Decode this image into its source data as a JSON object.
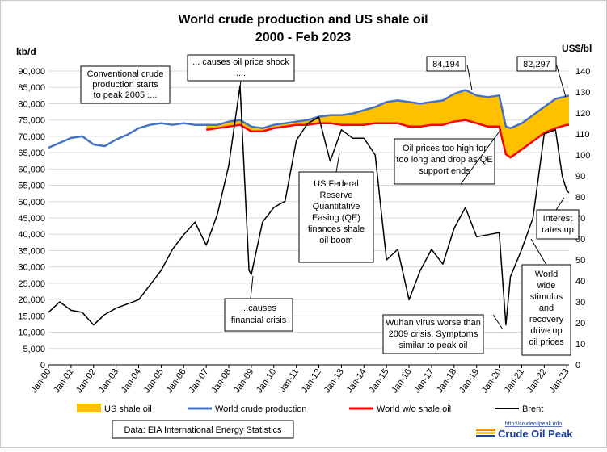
{
  "chart_data": {
    "type": "area",
    "title_line1": "World crude production and US shale oil",
    "title_line2": "2000 - Feb 2023",
    "y_left_unit": "kb/d",
    "y_right_unit": "US$/bl",
    "ylim_left": [
      0,
      90000
    ],
    "ylim_right": [
      0,
      140
    ],
    "y_left_ticks": [
      "0",
      "5,000",
      "10,000",
      "15,000",
      "20,000",
      "25,000",
      "30,000",
      "35,000",
      "40,000",
      "45,000",
      "50,000",
      "55,000",
      "60,000",
      "65,000",
      "70,000",
      "75,000",
      "80,000",
      "85,000",
      "90,000"
    ],
    "y_right_ticks": [
      "0",
      "10",
      "20",
      "30",
      "40",
      "50",
      "60",
      "70",
      "80",
      "90",
      "100",
      "110",
      "120",
      "130",
      "140"
    ],
    "x_ticks": [
      "Jan-00",
      "Jan-01",
      "Jan-02",
      "Jan-03",
      "Jan-04",
      "Jan-05",
      "Jan-06",
      "Jan-07",
      "Jan-08",
      "Jan-09",
      "Jan-10",
      "Jan-11",
      "Jan-12",
      "Jan-13",
      "Jan-14",
      "Jan-15",
      "Jan-16",
      "Jan-17",
      "Jan-18",
      "Jan-19",
      "Jan-20",
      "Jan-21",
      "Jan-22",
      "Jan-23"
    ],
    "series": [
      {
        "name": "US shale oil",
        "color": "#ffc000",
        "kind": "area-between"
      },
      {
        "name": "World crude production",
        "color": "#4472c4",
        "x": [
          2000,
          2000.5,
          2001,
          2001.5,
          2002,
          2002.5,
          2003,
          2003.5,
          2004,
          2004.5,
          2005,
          2005.5,
          2006,
          2006.5,
          2007,
          2007.5,
          2008,
          2008.5,
          2009,
          2009.5,
          2010,
          2010.5,
          2011,
          2011.5,
          2012,
          2012.5,
          2013,
          2013.5,
          2014,
          2014.5,
          2015,
          2015.5,
          2016,
          2016.5,
          2017,
          2017.5,
          2018,
          2018.5,
          2019,
          2019.5,
          2020,
          2020.3,
          2020.5,
          2021,
          2021.5,
          2022,
          2022.5,
          2023,
          2023.1
        ],
        "y": [
          66500,
          68000,
          69500,
          70000,
          67500,
          67000,
          69000,
          70500,
          72500,
          73500,
          74000,
          73500,
          74000,
          73500,
          73500,
          73500,
          74500,
          75000,
          73000,
          72500,
          73500,
          74000,
          74500,
          75000,
          76000,
          76500,
          76500,
          77000,
          78000,
          79000,
          80500,
          81000,
          80500,
          80000,
          80500,
          81000,
          83000,
          84194,
          82500,
          82000,
          82500,
          73000,
          72500,
          74000,
          76500,
          79000,
          81500,
          82297,
          82500
        ]
      },
      {
        "name": "World w/o shale oil",
        "color": "#ff0000",
        "x": [
          2007,
          2007.5,
          2008,
          2008.5,
          2009,
          2009.5,
          2010,
          2010.5,
          2011,
          2011.5,
          2012,
          2012.5,
          2013,
          2013.5,
          2014,
          2014.5,
          2015,
          2015.5,
          2016,
          2016.5,
          2017,
          2017.5,
          2018,
          2018.5,
          2019,
          2019.5,
          2020,
          2020.3,
          2020.5,
          2021,
          2021.5,
          2022,
          2022.5,
          2023,
          2023.1
        ],
        "y": [
          72000,
          72500,
          73000,
          73500,
          71500,
          71500,
          72500,
          73000,
          73500,
          73500,
          74000,
          74000,
          73500,
          73500,
          73500,
          74000,
          74000,
          74000,
          73000,
          73000,
          73500,
          73500,
          74500,
          75000,
          74000,
          73000,
          73000,
          64500,
          63500,
          66000,
          68500,
          71000,
          72500,
          73500,
          73500
        ]
      },
      {
        "name": "Brent",
        "color": "#000000",
        "axis": "right",
        "x": [
          2000,
          2000.5,
          2001,
          2001.5,
          2002,
          2002.5,
          2003,
          2003.5,
          2004,
          2004.5,
          2005,
          2005.5,
          2006,
          2006.5,
          2007,
          2007.5,
          2008,
          2008.5,
          2008.9,
          2009,
          2009.5,
          2010,
          2010.5,
          2011,
          2011.5,
          2012,
          2012.5,
          2013,
          2013.5,
          2014,
          2014.5,
          2015,
          2015.5,
          2016,
          2016.5,
          2017,
          2017.5,
          2018,
          2018.5,
          2019,
          2019.5,
          2020,
          2020.3,
          2020.5,
          2021,
          2021.5,
          2022,
          2022.5,
          2022.8,
          2023,
          2023.1
        ],
        "y": [
          25,
          30,
          26,
          25,
          19,
          24,
          27,
          29,
          31,
          38,
          45,
          55,
          62,
          68,
          57,
          72,
          95,
          133,
          45,
          43,
          68,
          75,
          78,
          107,
          115,
          118,
          97,
          112,
          108,
          108,
          100,
          50,
          55,
          31,
          45,
          55,
          48,
          65,
          75,
          61,
          62,
          63,
          19,
          42,
          55,
          70,
          110,
          112,
          90,
          83,
          82
        ]
      }
    ],
    "annotations": {
      "conventional": [
        "Conventional crude",
        "production starts",
        "to peak 2005 ...."
      ],
      "price_shock": [
        "... causes oil price shock",
        "...."
      ],
      "financial": [
        "...causes",
        "financial crisis"
      ],
      "qe": [
        "US Federal",
        "Reserve",
        "Quantitative",
        "Easing (QE)",
        "finances shale",
        "oil boom"
      ],
      "prices_high": [
        "Oil prices too high for",
        "too long and drop as QE",
        "support ends"
      ],
      "wuhan": [
        "Wuhan virus worse than",
        "2009 crisis. Symptoms",
        "similar to peak oil"
      ],
      "stimulus": [
        "World",
        "wide",
        "stimulus",
        "and",
        "recovery",
        "drive up",
        "oil prices"
      ],
      "interest": [
        "Interest",
        "rates up"
      ],
      "peak1": "84,194",
      "peak2": "82,297"
    },
    "source": "Data:  EIA International Energy Statistics",
    "logo_url": "http://crudeoilpeak.info",
    "logo_name": "Crude Oil Peak"
  }
}
